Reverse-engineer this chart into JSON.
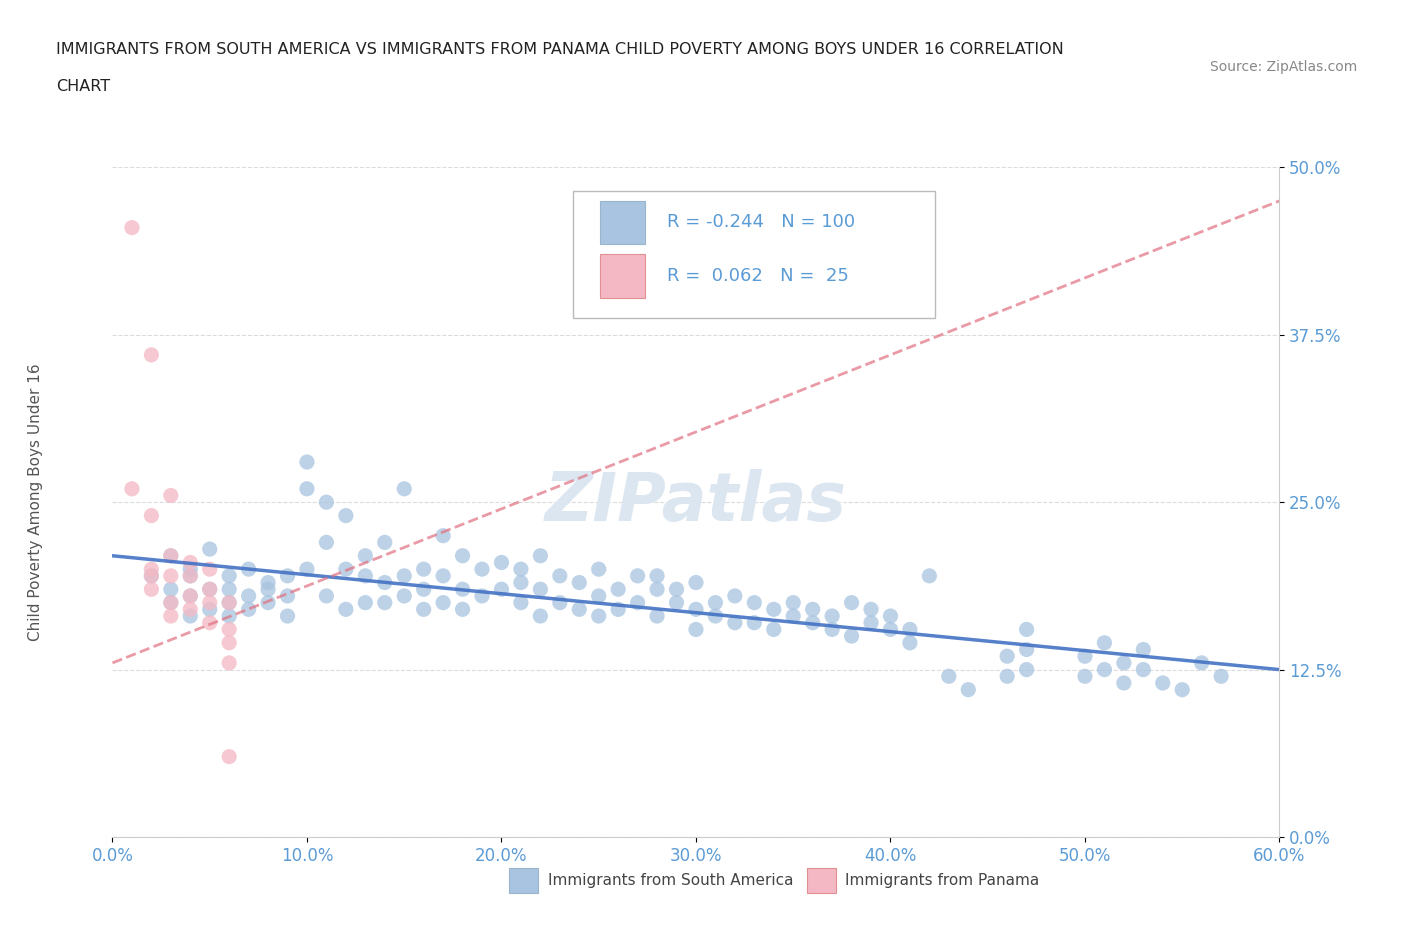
{
  "title_line1": "IMMIGRANTS FROM SOUTH AMERICA VS IMMIGRANTS FROM PANAMA CHILD POVERTY AMONG BOYS UNDER 16 CORRELATION",
  "title_line2": "CHART",
  "source_text": "Source: ZipAtlas.com",
  "ylabel": "Child Poverty Among Boys Under 16",
  "xlim": [
    0.0,
    0.6
  ],
  "ylim": [
    0.0,
    0.5
  ],
  "xtick_labels": [
    "0.0%",
    "",
    "",
    "",
    "",
    "",
    "",
    "",
    "",
    "10.0%",
    "",
    "",
    "",
    "",
    "",
    "",
    "",
    "",
    "",
    "20.0%",
    "",
    "",
    "",
    "",
    "",
    "",
    "",
    "",
    "",
    "30.0%",
    "",
    "",
    "",
    "",
    "",
    "",
    "",
    "",
    "",
    "40.0%",
    "",
    "",
    "",
    "",
    "",
    "",
    "",
    "",
    "",
    "50.0%",
    "",
    "",
    "",
    "",
    "",
    "",
    "",
    "",
    "",
    "60.0%"
  ],
  "xtick_vals": [
    0.0,
    0.1,
    0.2,
    0.3,
    0.4,
    0.5,
    0.6
  ],
  "xtick_display": [
    "0.0%",
    "10.0%",
    "20.0%",
    "30.0%",
    "40.0%",
    "50.0%",
    "60.0%"
  ],
  "ytick_labels": [
    "0.0%",
    "12.5%",
    "25.0%",
    "37.5%",
    "50.0%"
  ],
  "ytick_vals": [
    0.0,
    0.125,
    0.25,
    0.375,
    0.5
  ],
  "color_south_america": "#a8c4e0",
  "color_panama": "#f4b8c4",
  "trend_color_south": "#4472c4",
  "trend_color_panama": "#e07080",
  "watermark_color": "#dce6f0",
  "scatter_sa": [
    [
      0.02,
      0.195
    ],
    [
      0.03,
      0.185
    ],
    [
      0.03,
      0.21
    ],
    [
      0.03,
      0.175
    ],
    [
      0.04,
      0.2
    ],
    [
      0.04,
      0.18
    ],
    [
      0.04,
      0.165
    ],
    [
      0.04,
      0.195
    ],
    [
      0.05,
      0.185
    ],
    [
      0.05,
      0.17
    ],
    [
      0.05,
      0.215
    ],
    [
      0.06,
      0.195
    ],
    [
      0.06,
      0.175
    ],
    [
      0.06,
      0.185
    ],
    [
      0.06,
      0.165
    ],
    [
      0.07,
      0.2
    ],
    [
      0.07,
      0.18
    ],
    [
      0.07,
      0.17
    ],
    [
      0.08,
      0.19
    ],
    [
      0.08,
      0.175
    ],
    [
      0.08,
      0.185
    ],
    [
      0.09,
      0.195
    ],
    [
      0.09,
      0.165
    ],
    [
      0.09,
      0.18
    ],
    [
      0.1,
      0.26
    ],
    [
      0.1,
      0.28
    ],
    [
      0.1,
      0.2
    ],
    [
      0.11,
      0.25
    ],
    [
      0.11,
      0.22
    ],
    [
      0.11,
      0.18
    ],
    [
      0.12,
      0.24
    ],
    [
      0.12,
      0.2
    ],
    [
      0.12,
      0.17
    ],
    [
      0.13,
      0.21
    ],
    [
      0.13,
      0.195
    ],
    [
      0.13,
      0.175
    ],
    [
      0.14,
      0.22
    ],
    [
      0.14,
      0.19
    ],
    [
      0.14,
      0.175
    ],
    [
      0.15,
      0.26
    ],
    [
      0.15,
      0.195
    ],
    [
      0.15,
      0.18
    ],
    [
      0.16,
      0.2
    ],
    [
      0.16,
      0.185
    ],
    [
      0.16,
      0.17
    ],
    [
      0.17,
      0.225
    ],
    [
      0.17,
      0.195
    ],
    [
      0.17,
      0.175
    ],
    [
      0.18,
      0.21
    ],
    [
      0.18,
      0.185
    ],
    [
      0.18,
      0.17
    ],
    [
      0.19,
      0.2
    ],
    [
      0.19,
      0.18
    ],
    [
      0.2,
      0.205
    ],
    [
      0.2,
      0.185
    ],
    [
      0.21,
      0.2
    ],
    [
      0.21,
      0.175
    ],
    [
      0.21,
      0.19
    ],
    [
      0.22,
      0.21
    ],
    [
      0.22,
      0.185
    ],
    [
      0.22,
      0.165
    ],
    [
      0.23,
      0.195
    ],
    [
      0.23,
      0.175
    ],
    [
      0.24,
      0.19
    ],
    [
      0.24,
      0.17
    ],
    [
      0.25,
      0.2
    ],
    [
      0.25,
      0.18
    ],
    [
      0.25,
      0.165
    ],
    [
      0.26,
      0.185
    ],
    [
      0.26,
      0.17
    ],
    [
      0.27,
      0.195
    ],
    [
      0.27,
      0.175
    ],
    [
      0.28,
      0.185
    ],
    [
      0.28,
      0.165
    ],
    [
      0.28,
      0.195
    ],
    [
      0.29,
      0.175
    ],
    [
      0.29,
      0.185
    ],
    [
      0.3,
      0.19
    ],
    [
      0.3,
      0.17
    ],
    [
      0.3,
      0.155
    ],
    [
      0.31,
      0.175
    ],
    [
      0.31,
      0.165
    ],
    [
      0.32,
      0.18
    ],
    [
      0.32,
      0.16
    ],
    [
      0.33,
      0.175
    ],
    [
      0.33,
      0.16
    ],
    [
      0.34,
      0.17
    ],
    [
      0.34,
      0.155
    ],
    [
      0.35,
      0.165
    ],
    [
      0.35,
      0.175
    ],
    [
      0.36,
      0.16
    ],
    [
      0.36,
      0.17
    ],
    [
      0.37,
      0.155
    ],
    [
      0.37,
      0.165
    ],
    [
      0.38,
      0.175
    ],
    [
      0.38,
      0.15
    ],
    [
      0.39,
      0.16
    ],
    [
      0.39,
      0.17
    ],
    [
      0.4,
      0.155
    ],
    [
      0.4,
      0.165
    ],
    [
      0.41,
      0.145
    ],
    [
      0.41,
      0.155
    ],
    [
      0.42,
      0.195
    ],
    [
      0.43,
      0.12
    ],
    [
      0.44,
      0.11
    ],
    [
      0.46,
      0.135
    ],
    [
      0.46,
      0.12
    ],
    [
      0.47,
      0.155
    ],
    [
      0.47,
      0.14
    ],
    [
      0.47,
      0.125
    ],
    [
      0.5,
      0.135
    ],
    [
      0.5,
      0.12
    ],
    [
      0.51,
      0.145
    ],
    [
      0.51,
      0.125
    ],
    [
      0.52,
      0.13
    ],
    [
      0.52,
      0.115
    ],
    [
      0.53,
      0.14
    ],
    [
      0.53,
      0.125
    ],
    [
      0.54,
      0.115
    ],
    [
      0.55,
      0.11
    ],
    [
      0.56,
      0.13
    ],
    [
      0.57,
      0.12
    ]
  ],
  "scatter_panama": [
    [
      0.01,
      0.455
    ],
    [
      0.02,
      0.36
    ],
    [
      0.01,
      0.26
    ],
    [
      0.02,
      0.2
    ],
    [
      0.02,
      0.24
    ],
    [
      0.02,
      0.195
    ],
    [
      0.02,
      0.185
    ],
    [
      0.03,
      0.255
    ],
    [
      0.03,
      0.21
    ],
    [
      0.03,
      0.195
    ],
    [
      0.03,
      0.175
    ],
    [
      0.03,
      0.165
    ],
    [
      0.04,
      0.195
    ],
    [
      0.04,
      0.18
    ],
    [
      0.04,
      0.17
    ],
    [
      0.04,
      0.205
    ],
    [
      0.05,
      0.2
    ],
    [
      0.05,
      0.185
    ],
    [
      0.05,
      0.175
    ],
    [
      0.05,
      0.16
    ],
    [
      0.06,
      0.175
    ],
    [
      0.06,
      0.155
    ],
    [
      0.06,
      0.13
    ],
    [
      0.06,
      0.145
    ],
    [
      0.06,
      0.06
    ]
  ],
  "sa_trend_x": [
    0.0,
    0.6
  ],
  "sa_trend_y": [
    0.21,
    0.125
  ],
  "pan_trend_x": [
    0.0,
    0.6
  ],
  "pan_trend_y": [
    0.13,
    0.475
  ]
}
